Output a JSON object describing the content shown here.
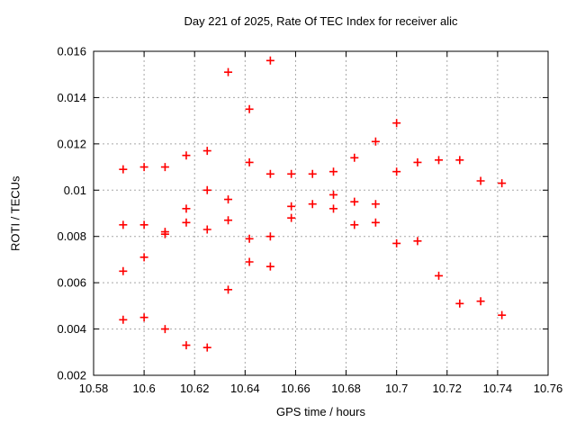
{
  "chart_data": {
    "type": "scatter",
    "title": "Day 221 of 2025, Rate Of TEC Index for receiver alic",
    "xlabel": "GPS time / hours",
    "ylabel": "ROTI / TECUs",
    "xlim": [
      10.58,
      10.76
    ],
    "ylim": [
      0.002,
      0.016
    ],
    "xticks": [
      10.58,
      10.6,
      10.62,
      10.64,
      10.66,
      10.68,
      10.7,
      10.72,
      10.74,
      10.76
    ],
    "xtick_labels": [
      "10.58",
      "10.6",
      "10.62",
      "10.64",
      "10.66",
      "10.68",
      "10.7",
      "10.72",
      "10.74",
      "10.76"
    ],
    "yticks": [
      0.002,
      0.004,
      0.006,
      0.008,
      0.01,
      0.012,
      0.014,
      0.016
    ],
    "ytick_labels": [
      "0.002",
      "0.004",
      "0.006",
      "0.008",
      "0.01",
      "0.012",
      "0.014",
      "0.016"
    ],
    "grid": true,
    "legend": "none",
    "marker": {
      "shape": "plus",
      "color": "#ff0000",
      "size": 9
    },
    "grid_color": "#a8a8a8",
    "border_color": "#000000",
    "background_color": "#ffffff",
    "series": [
      {
        "name": "ROTI",
        "points": [
          [
            10.5917,
            0.0109
          ],
          [
            10.5917,
            0.0085
          ],
          [
            10.5917,
            0.0065
          ],
          [
            10.5917,
            0.0044
          ],
          [
            10.6,
            0.011
          ],
          [
            10.6,
            0.0085
          ],
          [
            10.6,
            0.0071
          ],
          [
            10.6,
            0.0045
          ],
          [
            10.6083,
            0.011
          ],
          [
            10.6083,
            0.0082
          ],
          [
            10.6083,
            0.0081
          ],
          [
            10.6083,
            0.004
          ],
          [
            10.6167,
            0.0115
          ],
          [
            10.6167,
            0.0092
          ],
          [
            10.6167,
            0.0086
          ],
          [
            10.6167,
            0.0033
          ],
          [
            10.625,
            0.0117
          ],
          [
            10.625,
            0.01
          ],
          [
            10.625,
            0.0083
          ],
          [
            10.625,
            0.0032
          ],
          [
            10.6333,
            0.0151
          ],
          [
            10.6333,
            0.0096
          ],
          [
            10.6333,
            0.0087
          ],
          [
            10.6333,
            0.0057
          ],
          [
            10.6417,
            0.0135
          ],
          [
            10.6417,
            0.0112
          ],
          [
            10.6417,
            0.0079
          ],
          [
            10.6417,
            0.0069
          ],
          [
            10.65,
            0.0156
          ],
          [
            10.65,
            0.0107
          ],
          [
            10.65,
            0.008
          ],
          [
            10.65,
            0.0067
          ],
          [
            10.6583,
            0.0107
          ],
          [
            10.6583,
            0.0093
          ],
          [
            10.6583,
            0.0088
          ],
          [
            10.6667,
            0.0107
          ],
          [
            10.6667,
            0.0094
          ],
          [
            10.675,
            0.0108
          ],
          [
            10.675,
            0.0098
          ],
          [
            10.675,
            0.0092
          ],
          [
            10.6833,
            0.0114
          ],
          [
            10.6833,
            0.0095
          ],
          [
            10.6833,
            0.0085
          ],
          [
            10.6917,
            0.0121
          ],
          [
            10.6917,
            0.0094
          ],
          [
            10.6917,
            0.0086
          ],
          [
            10.7,
            0.0129
          ],
          [
            10.7,
            0.0108
          ],
          [
            10.7,
            0.0077
          ],
          [
            10.7083,
            0.0112
          ],
          [
            10.7083,
            0.0078
          ],
          [
            10.7167,
            0.0113
          ],
          [
            10.7167,
            0.0063
          ],
          [
            10.725,
            0.0113
          ],
          [
            10.725,
            0.0051
          ],
          [
            10.7333,
            0.0104
          ],
          [
            10.7333,
            0.0052
          ],
          [
            10.7417,
            0.0103
          ],
          [
            10.7417,
            0.0046
          ]
        ]
      }
    ]
  }
}
